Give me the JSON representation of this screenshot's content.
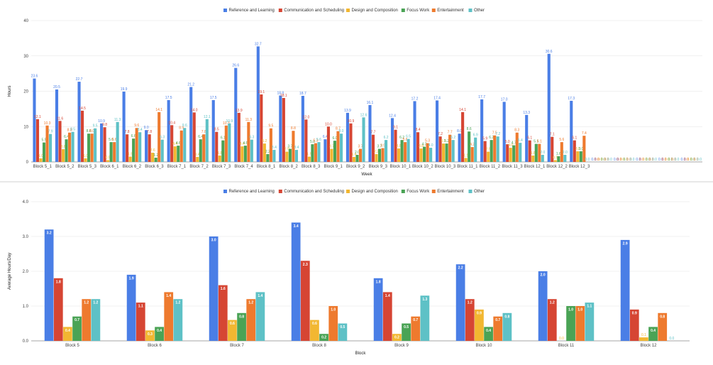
{
  "legend": [
    "Reference and Learning",
    "Communication and Scheduling",
    "Design and Composition",
    "Focus Work",
    "Entertainment",
    "Other"
  ],
  "colors": [
    "#4a7ee6",
    "#d64533",
    "#f2b731",
    "#4aa355",
    "#ee7a2e",
    "#5ec1c6"
  ],
  "chart_data": [
    {
      "type": "bar",
      "title": "",
      "xlabel": "Week",
      "ylabel": "Hours",
      "ylim": [
        0,
        40
      ],
      "yticks": [
        "0",
        "10",
        "20",
        "30",
        "40"
      ],
      "categories": [
        "Block 5_1",
        "Block 5_2",
        "Block 5_3",
        "Block 6_1",
        "Block 6_2",
        "Block 6_3",
        "Block 7_1",
        "Block 7_2",
        "Block 7_3",
        "Block 7_4",
        "Block 8_1",
        "Block 8_2",
        "Block 8_3",
        "Block 9_1",
        "Block 9_2",
        "Block 9_3",
        "Block 10_1",
        "Block 10_2",
        "Block 10_3",
        "Block 11_1",
        "Block 11_2",
        "Block 11_3",
        "Block 12_1",
        "Block 12_2",
        "Block 12_3",
        "",
        "",
        "",
        "",
        ""
      ],
      "series": [
        {
          "name": "Reference and Learning",
          "values": [
            23.6,
            20.5,
            22.7,
            10.9,
            19.9,
            9.0,
            17.5,
            21.2,
            17.5,
            26.6,
            32.7,
            18.8,
            18.7,
            6.4,
            13.9,
            16.1,
            12.4,
            17.2,
            17.4,
            8.0,
            17.7,
            17.0,
            13.3,
            30.6,
            17.3,
            0,
            0,
            0,
            0,
            0
          ]
        },
        {
          "name": "Communication and Scheduling",
          "values": [
            12.1,
            11.6,
            14.5,
            9.8,
            7.8,
            7.8,
            10.4,
            14.0,
            8.5,
            13.9,
            19.1,
            18.1,
            12.0,
            10.0,
            10.9,
            7.7,
            9.1,
            8.4,
            7.2,
            14.1,
            5.9,
            5.0,
            6.1,
            7.1,
            6.1,
            0,
            0,
            0,
            0,
            0
          ]
        },
        {
          "name": "Design and Composition",
          "values": [
            1.0,
            3.6,
            1.0,
            0.5,
            1.5,
            2.6,
            4.4,
            1.4,
            1.8,
            4.4,
            5.2,
            2.9,
            1.5,
            3.7,
            1.4,
            2.2,
            3.8,
            3.8,
            5.2,
            1.1,
            2.9,
            4.0,
            1.8,
            0.5,
            3.0,
            0,
            0,
            0,
            0,
            0
          ]
        },
        {
          "name": "Focus Work",
          "values": [
            5.5,
            6.4,
            8.0,
            5.6,
            6.6,
            1.2,
            4.6,
            6.4,
            6.1,
            4.6,
            2.2,
            3.7,
            5.0,
            6.0,
            2.0,
            3.7,
            6.2,
            4.3,
            5.2,
            8.6,
            6.2,
            4.7,
            5.1,
            1.6,
            3.0,
            0,
            0,
            0,
            0,
            0
          ]
        },
        {
          "name": "Entertainment",
          "values": [
            10.3,
            8.3,
            8.0,
            5.6,
            9.6,
            14.1,
            8.9,
            7.8,
            10.3,
            11.3,
            9.5,
            8.8,
            5.3,
            8.7,
            3.7,
            3.9,
            5.6,
            5.3,
            7.7,
            4.2,
            7.5,
            8.3,
            5.1,
            5.6,
            7.4,
            0,
            0,
            0,
            0,
            0
          ]
        },
        {
          "name": "Other",
          "values": [
            7.9,
            8.5,
            9.5,
            11.3,
            8.4,
            6.3,
            9.6,
            12.1,
            10.9,
            6.3,
            3.4,
            3.4,
            5.6,
            8.0,
            12.6,
            6.2,
            6.5,
            4.0,
            6.2,
            6.9,
            7.2,
            5.4,
            2.0,
            2.0,
            0.0,
            0,
            0,
            0,
            0,
            0
          ]
        }
      ]
    },
    {
      "type": "bar",
      "title": "",
      "xlabel": "Block",
      "ylabel": "Average Hours/Day",
      "ylim": [
        0,
        4
      ],
      "yticks": [
        "0.0",
        "1.0",
        "2.0",
        "3.0",
        "4.0"
      ],
      "categories": [
        "Block 5",
        "Block 6",
        "Block 7",
        "Block 8",
        "Block 9",
        "Block 10",
        "Block 11",
        "Block 12"
      ],
      "series": [
        {
          "name": "Reference and Learning",
          "values": [
            3.2,
            1.9,
            3.0,
            3.4,
            1.8,
            2.2,
            2.0,
            2.9
          ]
        },
        {
          "name": "Communication and Scheduling",
          "values": [
            1.8,
            1.1,
            1.6,
            2.3,
            1.4,
            1.2,
            1.2,
            0.9
          ]
        },
        {
          "name": "Design and Composition",
          "values": [
            0.4,
            0.3,
            0.6,
            0.6,
            0.2,
            0.9,
            0.0,
            0.1
          ]
        },
        {
          "name": "Focus Work",
          "values": [
            0.7,
            0.4,
            0.8,
            0.2,
            0.5,
            0.4,
            1.0,
            0.4
          ]
        },
        {
          "name": "Entertainment",
          "values": [
            1.2,
            1.4,
            1.2,
            1.0,
            0.7,
            0.7,
            1.0,
            0.8
          ]
        },
        {
          "name": "Other",
          "values": [
            1.2,
            1.2,
            1.4,
            0.5,
            1.3,
            0.8,
            1.1,
            0.0
          ]
        }
      ]
    }
  ]
}
